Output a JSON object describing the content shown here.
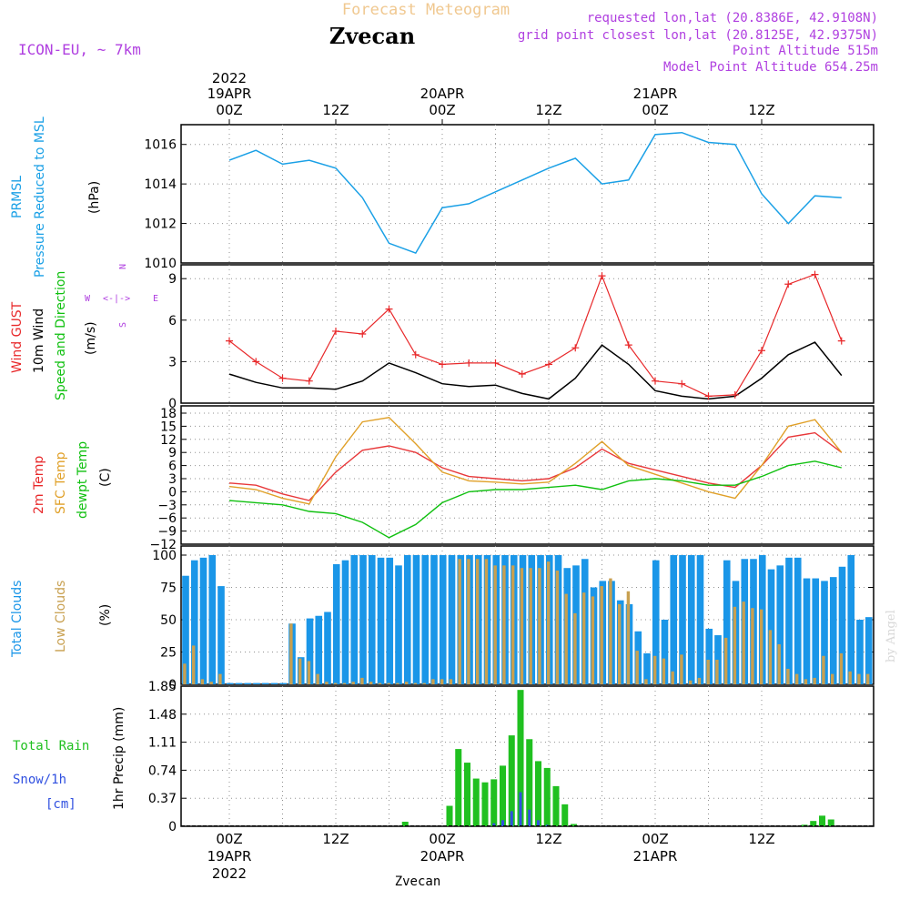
{
  "header": {
    "product": "Forecast Meteogram",
    "location": "Zvecan",
    "model": "ICON-EU, ~ 7km",
    "requested": "requested lon,lat (20.8386E, 42.9108N)",
    "gridpoint": "grid point closest lon,lat (20.8125E, 42.9375N)",
    "point_alt": "Point Altitude 515m",
    "model_alt": "Model Point Altitude 654.25m",
    "footer_location": "Zvecan",
    "credit": "by Angel"
  },
  "time_axis": {
    "top_labels": [
      {
        "l1": "2022",
        "l2": "19APR",
        "l3": "00Z"
      },
      {
        "l1": "",
        "l2": "",
        "l3": "12Z"
      },
      {
        "l1": "",
        "l2": "20APR",
        "l3": "00Z"
      },
      {
        "l1": "",
        "l2": "",
        "l3": "12Z"
      },
      {
        "l1": "",
        "l2": "21APR",
        "l3": "00Z"
      },
      {
        "l1": "",
        "l2": "",
        "l3": "12Z"
      }
    ],
    "bottom_labels": [
      {
        "l1": "00Z",
        "l2": "19APR",
        "l3": "2022"
      },
      {
        "l1": "12Z",
        "l2": "",
        "l3": ""
      },
      {
        "l1": "00Z",
        "l2": "20APR",
        "l3": ""
      },
      {
        "l1": "12Z",
        "l2": "",
        "l3": ""
      },
      {
        "l1": "00Z",
        "l2": "21APR",
        "l3": ""
      },
      {
        "l1": "12Z",
        "l2": "",
        "l3": ""
      }
    ]
  },
  "panels": {
    "pressure": {
      "label1": "PRMSL",
      "label2": "Pressure Reduced to MSL",
      "unit": "(hPa)",
      "color": "#1aa0e6"
    },
    "wind": {
      "label_gust": "Wind GUST",
      "label_wind": "10m Wind",
      "label_dir": "Speed and Direction",
      "unit": "(m/s)",
      "compass": {
        "w": "W",
        "e": "E",
        "n": "N",
        "s": "S",
        "arrows": "<-|->"
      }
    },
    "temp": {
      "label_t2m": "2m Temp",
      "label_sfc": "SFC Temp",
      "label_dew": "dewpt Temp",
      "unit": "(C)"
    },
    "clouds": {
      "label_total": "Total Clouds",
      "label_low": "Low Clouds",
      "unit": "(%)"
    },
    "precip": {
      "label_rain": "Total Rain",
      "label_snow": "Snow/1h",
      "label_cm": "[cm]",
      "axis_label": "1hr Precip (mm)"
    }
  },
  "colors": {
    "pressure": "#1aa0e6",
    "gust": "#e8282a",
    "wind10": "#000000",
    "t2m": "#e8383a",
    "sfc": "#e0a028",
    "dew": "#10c010",
    "total_cloud": "#1a96e8",
    "low_cloud": "#c8a050",
    "rain": "#20c020",
    "snow": "#3050e0",
    "purple": "#b040e0"
  },
  "chart_data": [
    {
      "type": "line",
      "title": "PRMSL",
      "ylabel": "(hPa)",
      "ylim": [
        1010,
        1017
      ],
      "yticks": [
        1010,
        1012,
        1014,
        1016
      ],
      "x_hours": [
        0,
        3,
        6,
        9,
        12,
        15,
        18,
        21,
        24,
        27,
        30,
        33,
        36,
        39,
        42,
        45,
        48,
        51,
        54,
        57,
        60,
        63,
        66,
        69
      ],
      "series": [
        {
          "name": "PRMSL",
          "values": [
            1015.2,
            1015.7,
            1015.0,
            1015.2,
            1014.8,
            1013.3,
            1011.0,
            1010.5,
            1012.8,
            1013.0,
            1013.6,
            1014.2,
            1014.8,
            1015.3,
            1014.0,
            1014.2,
            1016.5,
            1016.6,
            1016.1,
            1016.0,
            1013.5,
            1012.0,
            1013.4,
            1013.3
          ]
        }
      ]
    },
    {
      "type": "line",
      "title": "Wind GUST / 10m Wind",
      "ylabel": "(m/s)",
      "ylim": [
        0,
        10
      ],
      "yticks": [
        0,
        3,
        6,
        9
      ],
      "x_hours": [
        0,
        3,
        6,
        9,
        12,
        15,
        18,
        21,
        24,
        27,
        30,
        33,
        36,
        39,
        42,
        45,
        48,
        51,
        54,
        57,
        60,
        63,
        66,
        69
      ],
      "series": [
        {
          "name": "Wind GUST",
          "values": [
            4.5,
            3.0,
            1.8,
            1.6,
            5.2,
            5.0,
            6.8,
            3.5,
            2.8,
            2.9,
            2.9,
            2.1,
            2.8,
            4.0,
            9.2,
            4.2,
            1.6,
            1.4,
            0.5,
            0.6,
            3.8,
            8.6,
            9.3,
            4.5
          ]
        },
        {
          "name": "10m Wind",
          "values": [
            2.1,
            1.5,
            1.1,
            1.1,
            1.0,
            1.6,
            2.9,
            2.2,
            1.4,
            1.2,
            1.3,
            0.7,
            0.3,
            1.8,
            4.2,
            2.8,
            0.9,
            0.5,
            0.3,
            0.5,
            1.8,
            3.5,
            4.4,
            2.0
          ]
        }
      ]
    },
    {
      "type": "line",
      "title": "Temperatures",
      "ylabel": "(C)",
      "ylim": [
        -12,
        18
      ],
      "yticks": [
        -12,
        -9,
        -6,
        -3,
        0,
        3,
        6,
        9,
        12,
        15,
        18
      ],
      "x_hours": [
        0,
        3,
        6,
        9,
        12,
        15,
        18,
        21,
        24,
        27,
        30,
        33,
        36,
        39,
        42,
        45,
        48,
        51,
        54,
        57,
        60,
        63,
        66,
        69
      ],
      "series": [
        {
          "name": "2m Temp",
          "values": [
            2.0,
            1.5,
            -0.5,
            -2.0,
            4.5,
            9.5,
            10.5,
            9.0,
            5.5,
            3.5,
            3.0,
            2.5,
            3.0,
            5.5,
            9.8,
            6.5,
            5.0,
            3.5,
            2.0,
            1.0,
            6.0,
            12.5,
            13.5,
            9.0
          ]
        },
        {
          "name": "SFC Temp",
          "values": [
            1.2,
            0.5,
            -1.5,
            -2.8,
            8.0,
            16.0,
            17.0,
            11.0,
            4.5,
            2.5,
            2.2,
            1.8,
            2.2,
            6.5,
            11.5,
            6.0,
            4.0,
            2.0,
            0.0,
            -1.5,
            6.0,
            15.0,
            16.5,
            9.0
          ]
        },
        {
          "name": "dewpt Temp",
          "values": [
            -2.0,
            -2.5,
            -3.0,
            -4.5,
            -5.0,
            -7.0,
            -10.5,
            -7.5,
            -2.5,
            0.0,
            0.5,
            0.5,
            1.0,
            1.5,
            0.5,
            2.5,
            3.0,
            2.5,
            1.5,
            1.5,
            3.5,
            6.0,
            7.0,
            5.5
          ]
        }
      ]
    },
    {
      "type": "bar",
      "title": "Clouds",
      "ylabel": "(%)",
      "ylim": [
        0,
        100
      ],
      "yticks": [
        0,
        25,
        50,
        75,
        100
      ],
      "x_hours": [
        0,
        1,
        2,
        3,
        4,
        5,
        6,
        7,
        8,
        9,
        10,
        11,
        12,
        13,
        14,
        15,
        16,
        17,
        18,
        19,
        20,
        21,
        22,
        23,
        24,
        25,
        26,
        27,
        28,
        29,
        30,
        31,
        32,
        33,
        34,
        35,
        36,
        37,
        38,
        39,
        40,
        41,
        42,
        43,
        44,
        45,
        46,
        47,
        48,
        49,
        50,
        51,
        52,
        53,
        54,
        55,
        56,
        57,
        58,
        59,
        60,
        61,
        62,
        63,
        64,
        65,
        66,
        67,
        68,
        69,
        70,
        71,
        72,
        73,
        74,
        75,
        76,
        77
      ],
      "series": [
        {
          "name": "Total Clouds",
          "values": [
            84,
            96,
            98,
            100,
            76,
            1,
            1,
            1,
            1,
            1,
            1,
            1,
            47,
            21,
            51,
            53,
            56,
            93,
            96,
            100,
            100,
            100,
            98,
            98,
            92,
            100,
            100,
            100,
            100,
            100,
            100,
            100,
            100,
            100,
            100,
            100,
            100,
            100,
            100,
            100,
            100,
            100,
            100,
            90,
            92,
            97,
            75,
            80,
            80,
            65,
            62,
            41,
            24,
            96,
            50,
            100,
            100,
            100,
            100,
            43,
            38,
            96,
            80,
            97,
            97,
            100,
            89,
            92,
            98,
            98,
            82,
            82,
            80,
            83,
            91,
            100,
            50,
            52
          ]
        },
        {
          "name": "Low Clouds",
          "values": [
            16,
            30,
            4,
            2,
            8,
            0,
            0,
            0,
            0,
            0,
            0,
            0,
            47,
            20,
            18,
            8,
            2,
            1,
            1,
            2,
            5,
            2,
            1,
            1,
            1,
            2,
            1,
            1,
            4,
            4,
            4,
            97,
            97,
            97,
            97,
            92,
            92,
            92,
            90,
            90,
            90,
            95,
            88,
            70,
            55,
            71,
            68,
            76,
            82,
            62,
            72,
            26,
            4,
            22,
            20,
            10,
            23,
            3,
            5,
            19,
            19,
            36,
            60,
            64,
            59,
            58,
            42,
            31,
            12,
            8,
            4,
            5,
            22,
            8,
            24,
            10,
            8,
            8
          ]
        }
      ]
    },
    {
      "type": "bar",
      "title": "1hr Precip",
      "ylabel": "1hr Precip (mm)",
      "ylim": [
        0,
        1.85
      ],
      "yticks": [
        0,
        0.37,
        0.74,
        1.11,
        1.48,
        1.85
      ],
      "x_hours": [
        19,
        24,
        25,
        26,
        27,
        28,
        29,
        30,
        31,
        32,
        33,
        34,
        35,
        36,
        37,
        38,
        64,
        65,
        66,
        67
      ],
      "series": [
        {
          "name": "Total Rain",
          "values": [
            0.06,
            0.27,
            1.02,
            0.84,
            0.63,
            0.58,
            0.62,
            0.8,
            1.2,
            1.8,
            1.15,
            0.86,
            0.77,
            0.53,
            0.29,
            0.03,
            0.02,
            0.07,
            0.14,
            0.09
          ]
        },
        {
          "name": "Snow/1h",
          "values": [
            0,
            0,
            0,
            0,
            0,
            0,
            0.04,
            0.08,
            0.2,
            0.45,
            0.22,
            0.08,
            0.02,
            0,
            0,
            0,
            0,
            0,
            0,
            0
          ]
        }
      ]
    }
  ]
}
